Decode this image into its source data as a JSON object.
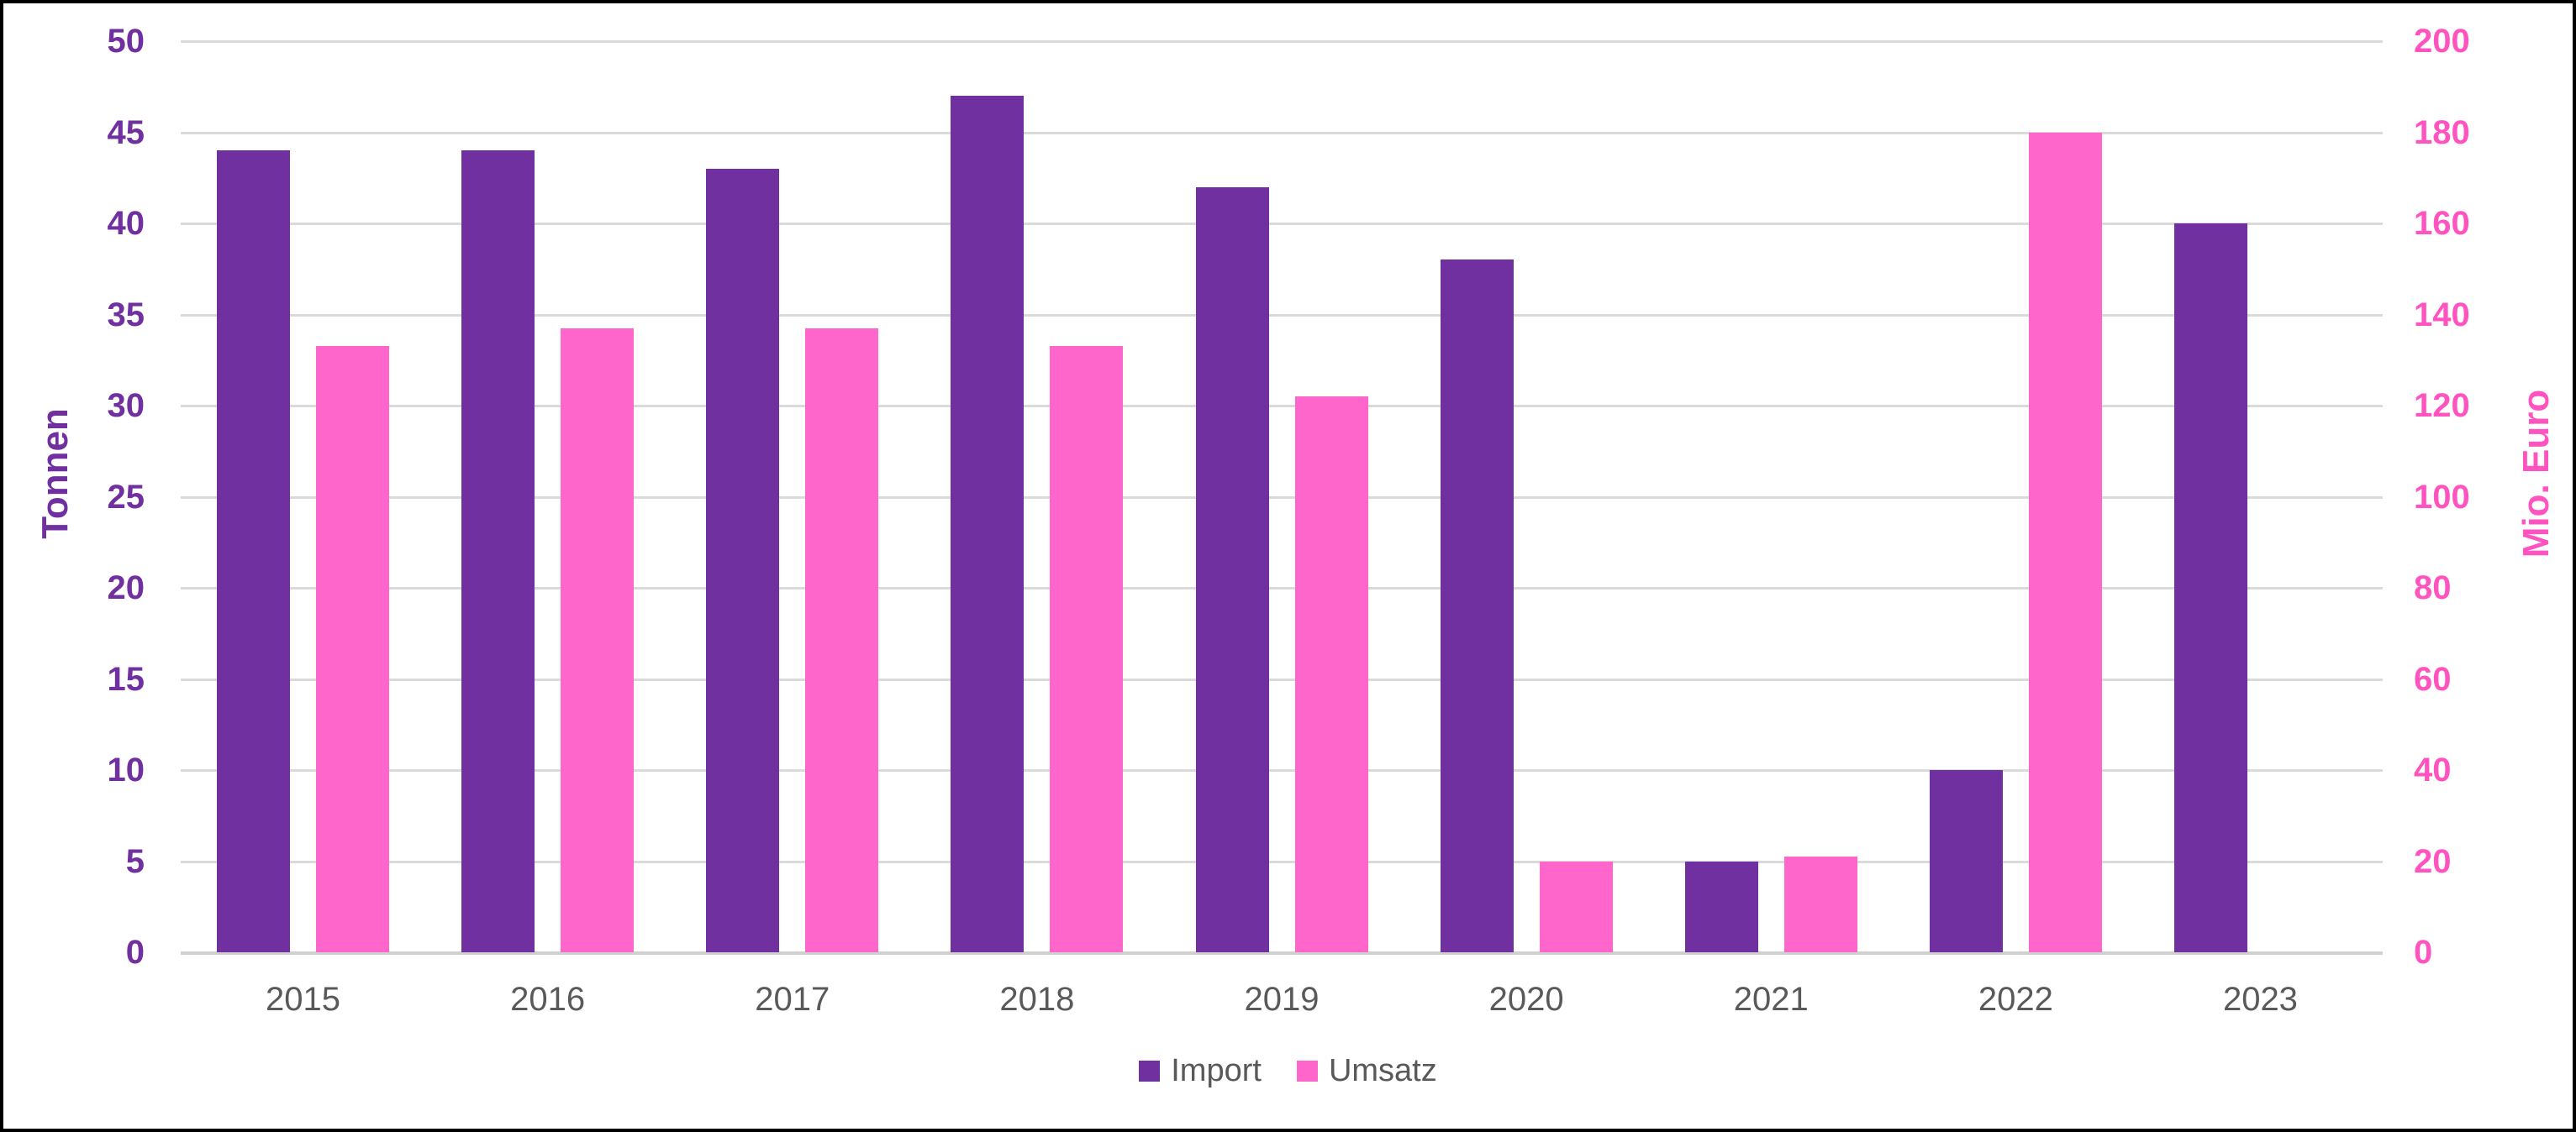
{
  "chart_data": {
    "type": "bar",
    "title": "",
    "categories": [
      "2015",
      "2016",
      "2017",
      "2018",
      "2019",
      "2020",
      "2021",
      "2022",
      "2023"
    ],
    "series": [
      {
        "name": "Import",
        "axis": "left",
        "color": "#7030A0",
        "values": [
          44,
          44,
          43,
          47,
          42,
          38,
          5,
          10,
          40
        ]
      },
      {
        "name": "Umsatz",
        "axis": "right",
        "color": "#FF66CC",
        "values": [
          133,
          137,
          137,
          133,
          122,
          20,
          21,
          180,
          null
        ]
      }
    ],
    "left_axis": {
      "label": "Tonnen",
      "min": 0,
      "max": 50,
      "step": 5,
      "ticks": [
        0,
        5,
        10,
        15,
        20,
        25,
        30,
        35,
        40,
        45,
        50
      ],
      "color": "#7030A0"
    },
    "right_axis": {
      "label": "Mio. Euro",
      "min": 0,
      "max": 200,
      "step": 20,
      "ticks": [
        0,
        20,
        40,
        60,
        80,
        100,
        120,
        140,
        160,
        180,
        200
      ],
      "color": "#FF54C0"
    },
    "grid": true,
    "gridline_color": "#dadada",
    "text_color": "#595959",
    "legend_position": "bottom"
  }
}
